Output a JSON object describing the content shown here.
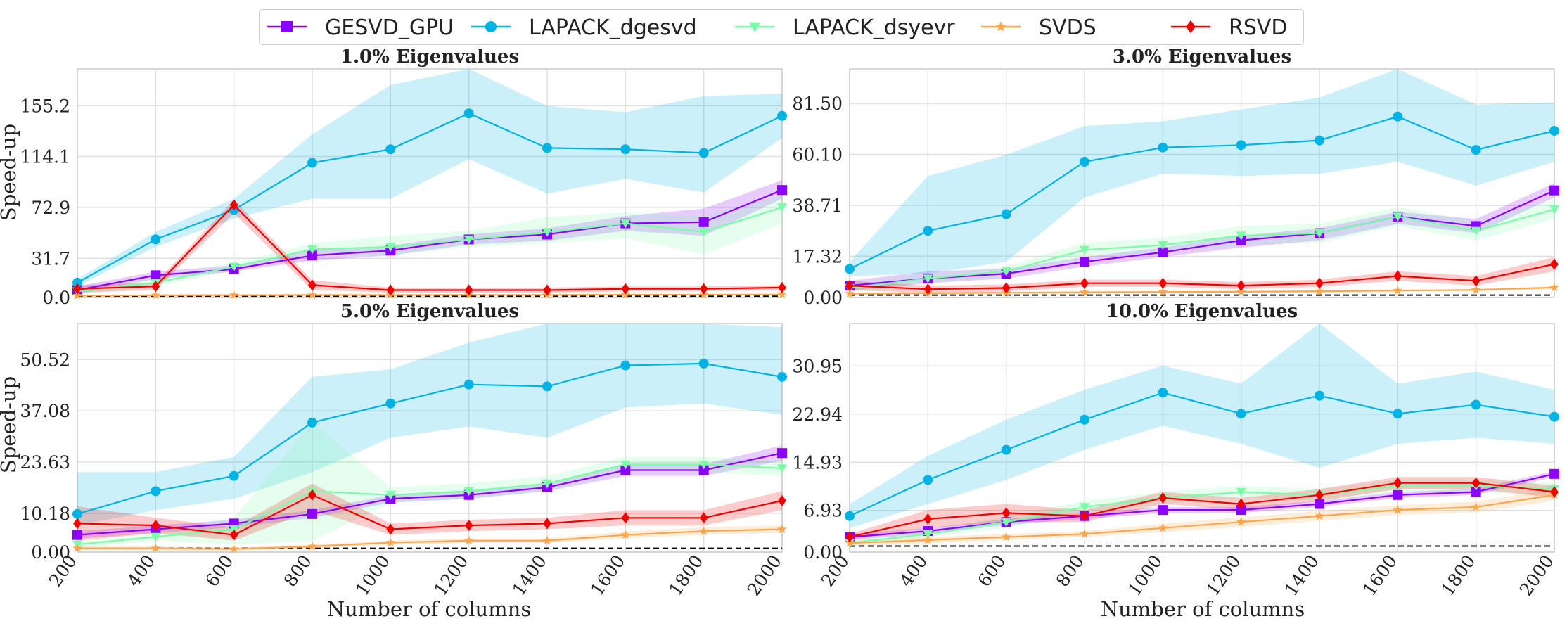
{
  "chart_data": {
    "type": "line",
    "layout": "2x2 grid of panels",
    "xlabel": "Number of columns",
    "ylabel": "Speed-up",
    "x": [
      200,
      400,
      600,
      800,
      1000,
      1200,
      1400,
      1600,
      1800,
      2000
    ],
    "x_tick_labels": [
      "200",
      "400",
      "600",
      "800",
      "1000",
      "1200",
      "1400",
      "1600",
      "1800",
      "2000"
    ],
    "legend_position": "top-center",
    "grid": true,
    "reference_line": {
      "y": 1.0,
      "style": "dashed",
      "color": "#000000"
    },
    "series_styles": [
      {
        "name": "GESVD_GPU",
        "color": "#8b00ff",
        "marker": "square"
      },
      {
        "name": "LAPACK_dgesvd",
        "color": "#00b3e3",
        "marker": "circle"
      },
      {
        "name": "LAPACK_dsyevr",
        "color": "#7dfca8",
        "marker": "triangle-down"
      },
      {
        "name": "SVDS",
        "color": "#ffa64d",
        "marker": "star"
      },
      {
        "name": "RSVD",
        "color": "#ee0000",
        "marker": "diamond"
      }
    ],
    "panels": [
      {
        "title": "1.0% Eigenvalues",
        "ylim": [
          0,
          185
        ],
        "yticks": [
          0.0,
          31.7,
          72.9,
          114.1,
          155.2
        ],
        "ytick_labels": [
          "0.0",
          "31.7",
          "72.9",
          "114.1",
          "155.2"
        ],
        "series": [
          {
            "name": "GESVD_GPU",
            "values": [
              6,
              18,
              23,
              34,
              38,
              47,
              51,
              60,
              61,
              87
            ],
            "band_low": [
              3,
              15,
              21,
              30,
              34,
              43,
              46,
              54,
              50,
              80
            ],
            "band_high": [
              9,
              21,
              26,
              38,
              42,
              51,
              56,
              66,
              72,
              95
            ]
          },
          {
            "name": "LAPACK_dgesvd",
            "values": [
              12,
              47,
              71,
              109,
              120,
              149,
              121,
              120,
              117,
              147
            ],
            "band_low": [
              9,
              41,
              64,
              80,
              80,
              112,
              84,
              96,
              85,
              129
            ],
            "band_high": [
              15,
              53,
              80,
              132,
              172,
              186,
              155,
              150,
              163,
              165
            ]
          },
          {
            "name": "LAPACK_dsyevr",
            "values": [
              5,
              12,
              25,
              39,
              41,
              47,
              53,
              60,
              53,
              73
            ],
            "band_low": [
              2,
              9,
              22,
              34,
              34,
              41,
              44,
              48,
              35,
              60
            ],
            "band_high": [
              8,
              16,
              28,
              44,
              50,
              54,
              65,
              69,
              66,
              83
            ]
          },
          {
            "name": "SVDS",
            "values": [
              1.5,
              1.8,
              1.9,
              2.0,
              2.0,
              2.1,
              2.1,
              2.2,
              2.3,
              2.4
            ],
            "band_low": [
              1.0,
              1.3,
              1.4,
              1.5,
              1.5,
              1.6,
              1.6,
              1.7,
              1.8,
              1.9
            ],
            "band_high": [
              2.0,
              2.3,
              2.4,
              2.5,
              2.5,
              2.6,
              2.6,
              2.7,
              2.8,
              2.9
            ]
          },
          {
            "name": "RSVD",
            "values": [
              7,
              9,
              75,
              10,
              6,
              6,
              6,
              7,
              7,
              8
            ],
            "band_low": [
              4,
              6,
              68,
              6,
              4,
              4,
              4,
              5,
              5,
              6
            ],
            "band_high": [
              10,
              12,
              79,
              14,
              8,
              8,
              8,
              9,
              9,
              10
            ]
          }
        ]
      },
      {
        "title": "3.0% Eigenvalues",
        "ylim": [
          0,
          96
        ],
        "yticks": [
          0.0,
          17.32,
          38.71,
          60.1,
          81.5
        ],
        "ytick_labels": [
          "0.00",
          "17.32",
          "38.71",
          "60.10",
          "81.50"
        ],
        "series": [
          {
            "name": "GESVD_GPU",
            "values": [
              5,
              8,
              10,
              15,
              19,
              24,
              27,
              34,
              30,
              45
            ],
            "band_low": [
              3,
              6,
              8,
              13,
              17,
              21,
              24,
              31,
              27,
              42
            ],
            "band_high": [
              7,
              11,
              12,
              17,
              21,
              26,
              29,
              36,
              33,
              48
            ]
          },
          {
            "name": "LAPACK_dgesvd",
            "values": [
              12,
              28,
              35,
              57,
              63,
              64,
              66,
              76,
              62,
              70
            ],
            "band_low": [
              9,
              10,
              15,
              42,
              52,
              51,
              52,
              57,
              47,
              57
            ],
            "band_high": [
              15,
              51,
              60,
              72,
              74,
              79,
              84,
              96,
              81,
              82
            ]
          },
          {
            "name": "LAPACK_dsyevr",
            "values": [
              4,
              8,
              11,
              20,
              22,
              26,
              27,
              34,
              28,
              37
            ],
            "band_low": [
              2,
              6,
              9,
              17,
              19,
              22,
              23,
              30,
              24,
              33
            ],
            "band_high": [
              6,
              10,
              13,
              23,
              25,
              30,
              31,
              38,
              32,
              41
            ]
          },
          {
            "name": "SVDS",
            "values": [
              1.6,
              1.8,
              2.0,
              2.2,
              2.3,
              2.4,
              2.6,
              2.9,
              3.2,
              4.2
            ],
            "band_low": [
              1.2,
              1.4,
              1.6,
              1.8,
              1.9,
              2.0,
              2.2,
              2.5,
              2.8,
              3.6
            ],
            "band_high": [
              2.0,
              2.2,
              2.4,
              2.6,
              2.7,
              2.8,
              3.0,
              3.3,
              3.6,
              4.8
            ]
          },
          {
            "name": "RSVD",
            "values": [
              5,
              3.5,
              4,
              6,
              6,
              5,
              6,
              9,
              7,
              14
            ],
            "band_low": [
              3,
              2,
              2.5,
              4.5,
              4.5,
              3.5,
              4.5,
              7,
              5,
              11
            ],
            "band_high": [
              7,
              5,
              5.5,
              7.5,
              7.5,
              6.5,
              7.5,
              11,
              9,
              17
            ]
          }
        ]
      },
      {
        "title": "5.0% Eigenvalues",
        "ylim": [
          0,
          60
        ],
        "yticks": [
          0.0,
          10.18,
          23.63,
          37.08,
          50.52
        ],
        "ytick_labels": [
          "0.00",
          "10.18",
          "23.63",
          "37.08",
          "50.52"
        ],
        "series": [
          {
            "name": "GESVD_GPU",
            "values": [
              4.5,
              6,
              7.5,
              10,
              14,
              15,
              17,
              21.5,
              21.5,
              26
            ],
            "band_low": [
              3.5,
              5,
              6.5,
              9,
              13,
              14,
              16,
              20,
              20,
              24
            ],
            "band_high": [
              5.5,
              7,
              8.5,
              11,
              15,
              16,
              18,
              23,
              23,
              28
            ]
          },
          {
            "name": "LAPACK_dgesvd",
            "values": [
              10,
              16,
              20,
              34,
              39,
              44,
              43.5,
              49,
              49.5,
              46
            ],
            "band_low": [
              7,
              11,
              14,
              21,
              30,
              33,
              30,
              38,
              39,
              36
            ],
            "band_high": [
              21,
              21,
              25,
              46,
              48,
              55,
              60,
              61,
              61,
              59
            ]
          },
          {
            "name": "LAPACK_dsyevr",
            "values": [
              2,
              4,
              6,
              16,
              15,
              16,
              18,
              23,
              23,
              22
            ],
            "band_low": [
              1,
              3,
              2,
              3,
              13,
              14,
              16,
              21,
              21,
              20
            ],
            "band_high": [
              3,
              5,
              9,
              34,
              17,
              18,
              20,
              25,
              25,
              24
            ]
          },
          {
            "name": "SVDS",
            "values": [
              1.0,
              1.0,
              0.8,
              1.5,
              2.5,
              3.0,
              3.0,
              4.5,
              5.5,
              6.0
            ],
            "band_low": [
              0.5,
              0.5,
              0.4,
              1.0,
              2.0,
              2.4,
              2.4,
              3.6,
              4.5,
              5.0
            ],
            "band_high": [
              1.5,
              1.5,
              1.2,
              2.0,
              3.0,
              3.6,
              3.6,
              5.4,
              6.5,
              7.0
            ]
          },
          {
            "name": "RSVD",
            "values": [
              7.5,
              7,
              4.5,
              15,
              6,
              7,
              7.5,
              9,
              9,
              13.5
            ],
            "band_low": [
              3,
              5,
              3,
              11,
              4.5,
              5.5,
              6,
              7,
              7,
              11
            ],
            "band_high": [
              12,
              9,
              6.5,
              18,
              7.5,
              8.5,
              9,
              11,
              11,
              16
            ]
          }
        ]
      },
      {
        "title": "10.0% Eigenvalues",
        "ylim": [
          0,
          38
        ],
        "yticks": [
          0.0,
          6.93,
          14.93,
          22.94,
          30.95
        ],
        "ytick_labels": [
          "0.00",
          "6.93",
          "14.93",
          "22.94",
          "30.95"
        ],
        "series": [
          {
            "name": "GESVD_GPU",
            "values": [
              2.5,
              3.5,
              5,
              6,
              7,
              7,
              8,
              9.5,
              10,
              13
            ],
            "band_low": [
              2,
              3,
              4.5,
              5.5,
              6.5,
              6.5,
              7.5,
              9,
              9.5,
              12.5
            ],
            "band_high": [
              3,
              4,
              5.5,
              6.5,
              7.5,
              7.5,
              8.5,
              10,
              10.5,
              13.5
            ]
          },
          {
            "name": "LAPACK_dgesvd",
            "values": [
              6,
              12,
              17,
              22,
              26.5,
              23,
              26,
              23,
              24.5,
              22.5
            ],
            "band_low": [
              4,
              8,
              12,
              17,
              21,
              18,
              14,
              18,
              19,
              18
            ],
            "band_high": [
              8,
              16,
              22,
              27,
              31,
              28,
              38,
              28,
              30,
              27
            ]
          },
          {
            "name": "LAPACK_dsyevr",
            "values": [
              1.5,
              3,
              5,
              7.5,
              9,
              10,
              9.5,
              11,
              11,
              10.5
            ],
            "band_low": [
              1,
              2.5,
              4,
              6.5,
              8,
              9,
              8.5,
              10,
              10,
              9.5
            ],
            "band_high": [
              2,
              3.5,
              6,
              8.5,
              10,
              11,
              10.5,
              12,
              12,
              11.5
            ]
          },
          {
            "name": "SVDS",
            "values": [
              1.5,
              2,
              2.5,
              3,
              4,
              5,
              6,
              7,
              7.5,
              9.5
            ],
            "band_low": [
              1,
              1.5,
              2,
              2.5,
              3.3,
              4.2,
              5.2,
              6.2,
              6.6,
              8.5
            ],
            "band_high": [
              2,
              2.5,
              3,
              3.5,
              4.7,
              5.8,
              6.8,
              7.8,
              8.4,
              10.5
            ]
          },
          {
            "name": "RSVD",
            "values": [
              2.5,
              5.5,
              6.5,
              6,
              9,
              8,
              9.5,
              11.5,
              11.5,
              10
            ],
            "band_low": [
              2,
              4,
              5,
              5,
              8,
              7,
              8.5,
              10.5,
              10.5,
              9
            ],
            "band_high": [
              3,
              7,
              8,
              7,
              10,
              9,
              10.5,
              12.5,
              12.5,
              11
            ]
          }
        ]
      }
    ]
  }
}
